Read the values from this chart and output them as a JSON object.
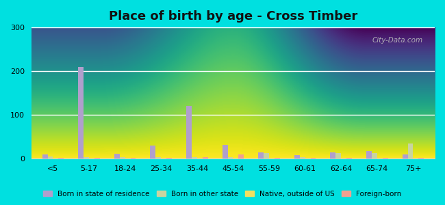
{
  "title": "Place of birth by age - Cross Timber",
  "categories": [
    "<5",
    "5-17",
    "18-24",
    "25-34",
    "35-44",
    "45-54",
    "55-59",
    "60-61",
    "62-64",
    "65-74",
    "75+"
  ],
  "series": {
    "Born in state of residence": [
      10,
      210,
      12,
      30,
      120,
      32,
      15,
      8,
      15,
      18,
      10
    ],
    "Born in other state": [
      5,
      3,
      3,
      3,
      3,
      3,
      13,
      3,
      13,
      13,
      35
    ],
    "Native, outside of US": [
      2,
      2,
      2,
      2,
      2,
      2,
      2,
      2,
      2,
      2,
      2
    ],
    "Foreign-born": [
      2,
      2,
      2,
      2,
      3,
      10,
      2,
      2,
      2,
      2,
      2
    ]
  },
  "colors": {
    "Born in state of residence": "#b09fcc",
    "Born in other state": "#c8d4a0",
    "Native, outside of US": "#f0e060",
    "Foreign-born": "#f0a090"
  },
  "ylim": [
    0,
    300
  ],
  "yticks": [
    0,
    100,
    200,
    300
  ],
  "bg_top_color": "#ffffff",
  "bg_bottom_color": "#d0e8c0",
  "outer_bg": "#00e0e0",
  "watermark": "City-Data.com",
  "bar_width": 0.15
}
